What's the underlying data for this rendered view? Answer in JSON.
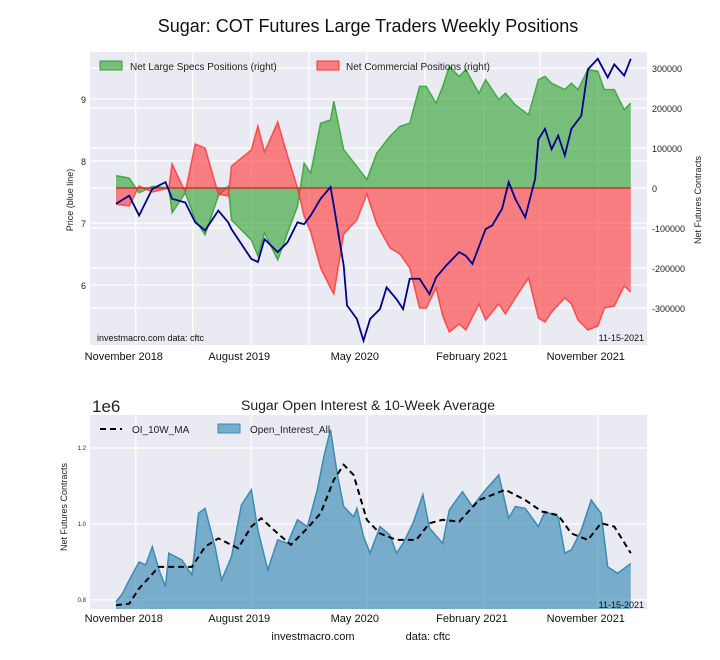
{
  "colors": {
    "specs": "#2ca02c",
    "commercial": "#ff3333",
    "price": "#00008b",
    "oi": "#3a8bb5",
    "ma": "#000000",
    "bg": "#eaeaf2"
  },
  "chart_data": [
    {
      "type": "area",
      "title": "Sugar: COT Futures Large Traders Weekly Positions",
      "ylabel_left": "Price (blue line)",
      "ylabel_right": "Net Futures Contracts",
      "ylim_left": [
        5.03,
        9.76
      ],
      "ylim_right": [
        -392500,
        340000
      ],
      "xlim_weeks": [
        -8,
        160
      ],
      "yticks_left": [
        "6",
        "7",
        "8",
        "9"
      ],
      "yticks_right": [
        "-300000",
        "-200000",
        "-100000",
        "0",
        "100000",
        "200000",
        "300000"
      ],
      "xticks": [
        {
          "week": 6,
          "label": "November 2018"
        },
        {
          "week": 41,
          "label": "August 2019"
        },
        {
          "week": 76,
          "label": "May 2020"
        },
        {
          "week": 111.5,
          "label": "February 2021"
        },
        {
          "week": 146,
          "label": "November 2021"
        }
      ],
      "minor_grid_weeks": [
        23.3,
        58.5,
        93.6,
        128.5
      ],
      "legend": [
        "Net Large Specs Positions (right)",
        "Net Commercial Positions (right)"
      ],
      "legend_position": "top-left",
      "annotation_left": "investmacro.com   data: cftc",
      "annotation_right": "11-15-2021",
      "pos_weeks": [
        0,
        4,
        7,
        11,
        16,
        17,
        21,
        24,
        27,
        31,
        34,
        35,
        41,
        43,
        45,
        49,
        52,
        55,
        57,
        59,
        62,
        65,
        66,
        69,
        73,
        76,
        79,
        83,
        86,
        89,
        92,
        94,
        97,
        99,
        101,
        104,
        106,
        110,
        112,
        116,
        118,
        121,
        125,
        128,
        130,
        132,
        136,
        138,
        140,
        143,
        146,
        148,
        151,
        154,
        156
      ],
      "series": [
        {
          "name": "Net Large Specs Positions (right)",
          "values": [
            31,
            25,
            -12,
            4,
            0,
            -62,
            -12,
            -80,
            -117,
            -20,
            4,
            -80,
            -130,
            -170,
            -112,
            -180,
            -112,
            -46,
            62,
            37,
            162,
            170,
            217,
            96,
            54,
            21,
            87,
            129,
            154,
            162,
            254,
            254,
            212,
            254,
            304,
            279,
            296,
            237,
            271,
            221,
            237,
            208,
            183,
            271,
            279,
            262,
            246,
            262,
            246,
            296,
            292,
            246,
            246,
            196,
            212
          ]
        },
        {
          "name": "Net Commercial Positions (right)",
          "values": [
            -40,
            -45,
            5,
            -10,
            0,
            60,
            -10,
            110,
            100,
            -15,
            -20,
            55,
            95,
            155,
            90,
            165,
            80,
            0,
            -70,
            -110,
            -200,
            -250,
            -265,
            -115,
            -80,
            -15,
            -90,
            -150,
            -165,
            -200,
            -300,
            -300,
            -250,
            -320,
            -360,
            -340,
            -355,
            -290,
            -330,
            -290,
            -315,
            -275,
            -225,
            -325,
            -335,
            -310,
            -275,
            -290,
            -330,
            -355,
            -345,
            -300,
            -295,
            -245,
            -260
          ]
        }
      ],
      "values_unit": "thousand contracts",
      "price": {
        "weeks": [
          0,
          4,
          7,
          11,
          15,
          17,
          21,
          24,
          27,
          31,
          34,
          35,
          41,
          43,
          45,
          49,
          52,
          55,
          57,
          59,
          62,
          65,
          66,
          69,
          70,
          73,
          75,
          77,
          80,
          82,
          85,
          87,
          89,
          92,
          95,
          97,
          100,
          104,
          106,
          108,
          112,
          114,
          117,
          119,
          121,
          124,
          127,
          128,
          130,
          132,
          134,
          136,
          138,
          141,
          143,
          146,
          149,
          151,
          154,
          156
        ],
        "values": [
          7.31,
          7.44,
          7.12,
          7.55,
          7.66,
          7.39,
          7.33,
          7.01,
          6.88,
          7.2,
          7.01,
          6.9,
          6.42,
          6.37,
          6.74,
          6.53,
          6.69,
          7.01,
          6.98,
          7.12,
          7.39,
          7.58,
          7.28,
          6.31,
          5.67,
          5.45,
          5.1,
          5.45,
          5.61,
          5.96,
          5.77,
          5.61,
          6.1,
          6.1,
          5.85,
          6.12,
          6.31,
          6.53,
          6.47,
          6.34,
          6.9,
          6.96,
          7.23,
          7.66,
          7.39,
          7.09,
          7.71,
          8.35,
          8.52,
          8.19,
          8.41,
          8.09,
          8.52,
          8.73,
          9.48,
          9.65,
          9.35,
          9.56,
          9.38,
          9.65
        ]
      }
    },
    {
      "type": "area",
      "title": "Sugar Open Interest & 10-Week Average",
      "scale_label": "1e6",
      "ylabel": "Net Futures Contracts",
      "ylim": [
        0.776,
        1.287
      ],
      "yticks": [
        "0.8",
        "1.0",
        "1.2"
      ],
      "xticks": [
        {
          "week": 6,
          "label": "November 2018"
        },
        {
          "week": 41,
          "label": "August 2019"
        },
        {
          "week": 76,
          "label": "May 2020"
        },
        {
          "week": 111.5,
          "label": "February 2021"
        },
        {
          "week": 146,
          "label": "November 2021"
        }
      ],
      "legend": [
        "OI_10W_MA",
        "Open_Interest_All"
      ],
      "legend_position": "top-left",
      "annotation_right": "11-15-2021",
      "footer_left": "investmacro.com",
      "footer_right": "data: cftc",
      "oi": {
        "weeks": [
          0,
          2,
          4,
          7,
          9,
          11,
          13,
          15,
          16,
          18,
          20,
          23,
          25,
          27,
          30,
          32,
          35,
          38,
          41,
          43,
          46,
          49,
          52,
          55,
          58,
          61,
          63,
          65,
          67,
          69,
          72,
          73,
          75,
          77,
          80,
          83,
          85,
          87,
          90,
          93,
          95,
          99,
          101,
          105,
          108,
          112,
          116,
          119,
          121,
          124,
          128,
          130,
          134,
          136,
          138,
          141,
          144,
          147,
          149,
          152,
          156
        ],
        "values": [
          0.795,
          0.817,
          0.852,
          0.9,
          0.892,
          0.94,
          0.88,
          0.835,
          0.923,
          0.914,
          0.905,
          0.865,
          1.028,
          1.041,
          0.94,
          0.852,
          0.914,
          1.05,
          1.09,
          0.984,
          0.879,
          0.958,
          0.949,
          1.011,
          0.993,
          1.09,
          1.178,
          1.248,
          1.134,
          1.046,
          1.019,
          1.041,
          0.967,
          0.923,
          0.993,
          0.971,
          0.923,
          0.949,
          1.002,
          1.077,
          0.989,
          0.949,
          1.037,
          1.085,
          1.046,
          1.09,
          1.129,
          1.015,
          1.046,
          1.041,
          0.993,
          1.033,
          1.019,
          0.923,
          0.932,
          0.984,
          1.063,
          1.028,
          0.887,
          0.87,
          0.896
        ]
      },
      "ma": {
        "weeks": [
          0,
          4,
          7,
          13,
          17,
          23,
          27,
          31,
          37,
          41,
          44,
          49,
          53,
          58,
          62,
          66,
          69,
          72,
          76,
          80,
          85,
          91,
          95,
          99,
          104,
          110,
          118,
          124,
          129,
          134,
          138,
          143,
          147,
          151,
          156
        ],
        "values": [
          0.786,
          0.79,
          0.83,
          0.887,
          0.887,
          0.887,
          0.94,
          0.962,
          0.936,
          0.993,
          1.015,
          0.975,
          0.945,
          0.989,
          1.028,
          1.116,
          1.156,
          1.129,
          1.011,
          0.975,
          0.958,
          0.958,
          1.002,
          1.011,
          1.006,
          1.063,
          1.09,
          1.063,
          1.033,
          1.023,
          0.975,
          0.958,
          1.002,
          0.993,
          0.923
        ]
      }
    }
  ]
}
